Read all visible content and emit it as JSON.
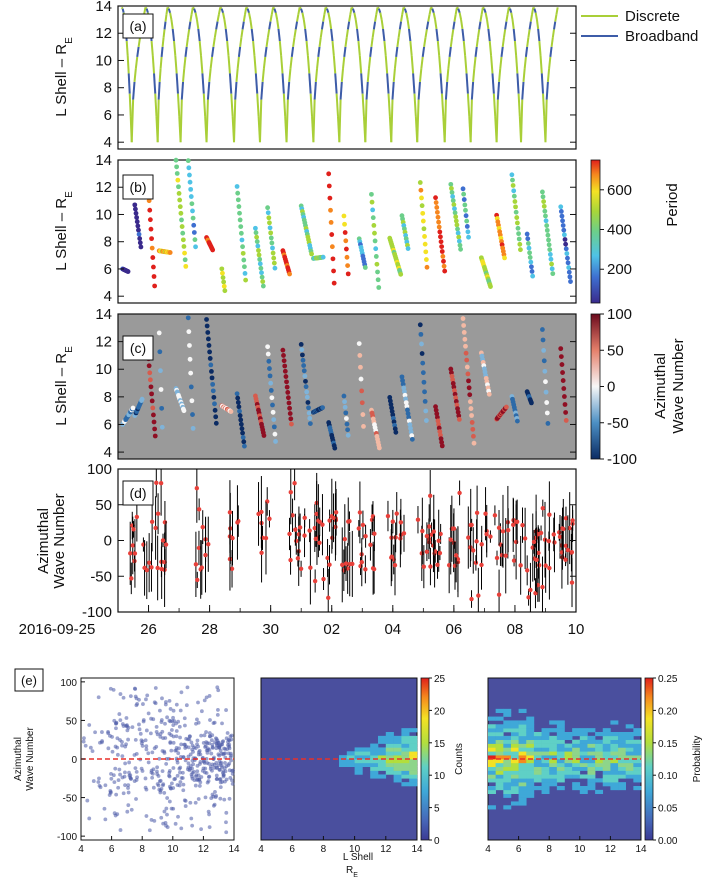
{
  "figure": {
    "panel_labels": [
      "(a)",
      "(b)",
      "(c)",
      "(d)",
      "(e)"
    ],
    "legend": [
      {
        "name": "Discrete",
        "color": "#a9cf38"
      },
      {
        "name": "Broadband",
        "color": "#3d5ca8"
      }
    ]
  },
  "chart_data": [
    {
      "panel": "(a)",
      "type": "line",
      "ylabel": "L Shell  –  R",
      "ylabel_sub": "E",
      "ylim": [
        3.5,
        14
      ],
      "yticks": [
        "4",
        "6",
        "8",
        "10",
        "12",
        "14"
      ],
      "xlim": [
        "2016-09-25",
        "2016-10-10"
      ],
      "series": [
        {
          "name": "Discrete",
          "color": "#a9cf38"
        },
        {
          "name": "Broadband",
          "color": "#3d5ca8"
        }
      ],
      "orbit_apogee_days": [
        0.12,
        0.9,
        1.62,
        2.45,
        3.35,
        4.2,
        5.08,
        5.95,
        6.8,
        7.65,
        8.5,
        9.35,
        10.25,
        11.1,
        11.95,
        12.8,
        13.6,
        14.4
      ],
      "perigee_days": [
        0.45,
        1.3,
        2.05,
        2.9,
        3.8,
        4.65,
        5.52,
        6.4,
        7.25,
        8.1,
        8.95,
        9.8,
        10.7,
        11.55,
        12.4,
        13.2,
        14.0
      ]
    },
    {
      "panel": "(b)",
      "type": "scatter",
      "ylabel": "L Shell  –  R",
      "ylabel_sub": "E",
      "ylim": [
        3.5,
        14
      ],
      "yticks": [
        "4",
        "6",
        "8",
        "10",
        "12",
        "14"
      ],
      "colorbar": {
        "label": "Period",
        "range": [
          30,
          750
        ],
        "ticks": [
          "200",
          "400",
          "600"
        ],
        "scale": "rainbow"
      }
    },
    {
      "panel": "(c)",
      "type": "scatter",
      "ylabel": "L Shell  –  R",
      "ylabel_sub": "E",
      "ylim": [
        3.5,
        14
      ],
      "yticks": [
        "4",
        "6",
        "8",
        "10",
        "12",
        "14"
      ],
      "background": "#9a9a9a",
      "colorbar": {
        "label_line1": "Azimuthal",
        "label_line2": "Wave Number",
        "range": [
          -100,
          100
        ],
        "ticks": [
          "-100",
          "-50",
          "0",
          "50",
          "100"
        ],
        "scale": "diverging"
      }
    },
    {
      "panel": "(d)",
      "type": "scatter",
      "ylabel_line1": "Azimuthal",
      "ylabel_line2": "Wave Number",
      "ylim": [
        -100,
        100
      ],
      "yticks": [
        "-100",
        "-50",
        "0",
        "50",
        "100"
      ],
      "marker_color": "#e8403a",
      "errorbar_color": "#000000",
      "xtick_labels": [
        "2016-09-25",
        "26",
        "28",
        "30",
        "02",
        "04",
        "06",
        "08",
        "10"
      ],
      "xtick_days": [
        0,
        1,
        3,
        5,
        7,
        9,
        11,
        13,
        15
      ]
    },
    {
      "panel": "(e)",
      "type": "scatter",
      "ylabel_line1": "Azimuthal",
      "ylabel_line2": "Wave Number",
      "xlim": [
        4,
        14
      ],
      "ylim": [
        -105,
        105
      ],
      "xticks": [
        "4",
        "6",
        "8",
        "10",
        "12",
        "14"
      ],
      "yticks": [
        "-100",
        "-50",
        "0",
        "50",
        "100"
      ],
      "reference_line_y": 0,
      "point_color": "#4a5aa8"
    },
    {
      "panel": "(e)-counts",
      "type": "heatmap",
      "xlim": [
        4,
        14
      ],
      "ylim": [
        -105,
        105
      ],
      "xticks": [
        "4",
        "6",
        "8",
        "10",
        "12",
        "14"
      ],
      "reference_line_y": 0,
      "colorbar": {
        "label": "Counts",
        "range": [
          0,
          25
        ],
        "ticks": [
          "0",
          "5",
          "10",
          "15",
          "20",
          "25"
        ]
      }
    },
    {
      "panel": "(e)-probability",
      "type": "heatmap",
      "xlim": [
        4,
        14
      ],
      "ylim": [
        -105,
        105
      ],
      "xticks": [
        "4",
        "6",
        "8",
        "10",
        "12",
        "14"
      ],
      "reference_line_y": 0,
      "colorbar": {
        "label": "Probability",
        "range": [
          0,
          0.25
        ],
        "ticks": [
          "0.00",
          "0.05",
          "0.10",
          "0.15",
          "0.20",
          "0.25"
        ]
      }
    }
  ],
  "bottom_axis": {
    "line1": "L Shell",
    "line2": "R",
    "line2_sub": "E"
  }
}
